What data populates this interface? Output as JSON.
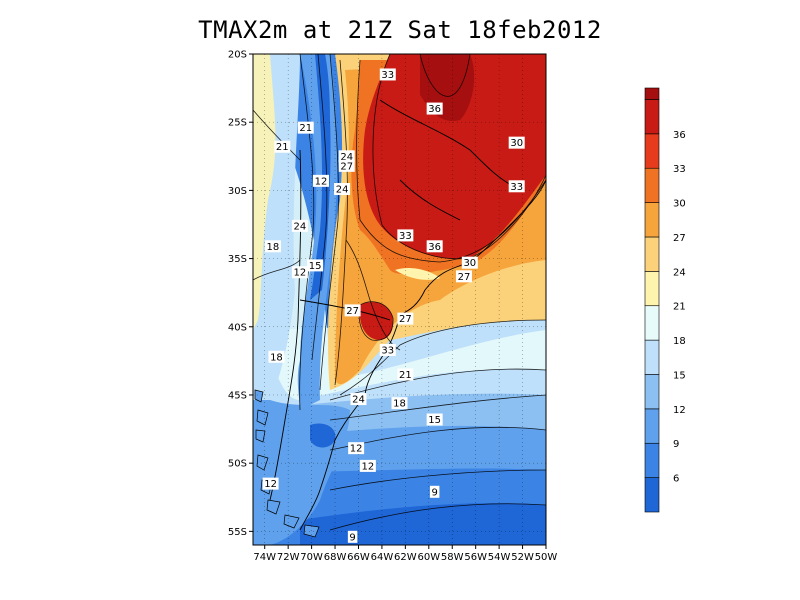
{
  "title": "TMAX2m at 21Z Sat 18feb2012",
  "map": {
    "lat_range": [
      -56,
      -20
    ],
    "lon_range": [
      -75,
      -50
    ],
    "lat_ticks": [
      "20S",
      "25S",
      "30S",
      "35S",
      "40S",
      "45S",
      "50S",
      "55S"
    ],
    "lon_ticks": [
      "74W",
      "72W",
      "70W",
      "68W",
      "66W",
      "64W",
      "62W",
      "60W",
      "58W",
      "56W",
      "54W",
      "52W",
      "50W"
    ],
    "contour_labels": [
      {
        "text": "33",
        "lon": -63.5,
        "lat": -21.5
      },
      {
        "text": "36",
        "lon": -59.5,
        "lat": -24.0
      },
      {
        "text": "30",
        "lon": -52.5,
        "lat": -26.5
      },
      {
        "text": "33",
        "lon": -52.5,
        "lat": -29.7
      },
      {
        "text": "21",
        "lon": -72.5,
        "lat": -26.8
      },
      {
        "text": "21",
        "lon": -70.5,
        "lat": -25.4
      },
      {
        "text": "24",
        "lon": -67.0,
        "lat": -27.5
      },
      {
        "text": "27",
        "lon": -67.0,
        "lat": -28.2
      },
      {
        "text": "12",
        "lon": -69.2,
        "lat": -29.3
      },
      {
        "text": "24",
        "lon": -67.4,
        "lat": -29.9
      },
      {
        "text": "24",
        "lon": -71.0,
        "lat": -32.6
      },
      {
        "text": "18",
        "lon": -73.3,
        "lat": -34.1
      },
      {
        "text": "33",
        "lon": -62.0,
        "lat": -33.3
      },
      {
        "text": "36",
        "lon": -59.5,
        "lat": -34.1
      },
      {
        "text": "30",
        "lon": -56.5,
        "lat": -35.3
      },
      {
        "text": "27",
        "lon": -57.0,
        "lat": -36.3
      },
      {
        "text": "15",
        "lon": -69.7,
        "lat": -35.5
      },
      {
        "text": "12",
        "lon": -71.0,
        "lat": -36.0
      },
      {
        "text": "27",
        "lon": -66.5,
        "lat": -38.8
      },
      {
        "text": "27",
        "lon": -62.0,
        "lat": -39.4
      },
      {
        "text": "33",
        "lon": -63.5,
        "lat": -41.7
      },
      {
        "text": "18",
        "lon": -73.0,
        "lat": -42.2
      },
      {
        "text": "21",
        "lon": -62.0,
        "lat": -43.5
      },
      {
        "text": "24",
        "lon": -66.0,
        "lat": -45.3
      },
      {
        "text": "18",
        "lon": -62.5,
        "lat": -45.6
      },
      {
        "text": "15",
        "lon": -59.5,
        "lat": -46.8
      },
      {
        "text": "12",
        "lon": -66.2,
        "lat": -48.9
      },
      {
        "text": "12",
        "lon": -65.2,
        "lat": -50.2
      },
      {
        "text": "12",
        "lon": -73.5,
        "lat": -51.5
      },
      {
        "text": "9",
        "lon": -59.5,
        "lat": -52.1
      },
      {
        "text": "9",
        "lon": -66.5,
        "lat": -55.4
      }
    ]
  },
  "colorbar": {
    "labels": [
      "6",
      "9",
      "12",
      "15",
      "18",
      "21",
      "24",
      "27",
      "30",
      "33",
      "36"
    ],
    "colors": [
      "#1f66d6",
      "#3b84e6",
      "#5fa1ec",
      "#8cc0f2",
      "#bfe0fa",
      "#e7fbfb",
      "#fff4ad",
      "#fbd27a",
      "#f6a43c",
      "#ef7322",
      "#e63b1c",
      "#c91b15",
      "#a50f0f"
    ],
    "boundaries": [
      3,
      6,
      9,
      12,
      15,
      18,
      21,
      24,
      27,
      30,
      33,
      36,
      39,
      40
    ]
  }
}
